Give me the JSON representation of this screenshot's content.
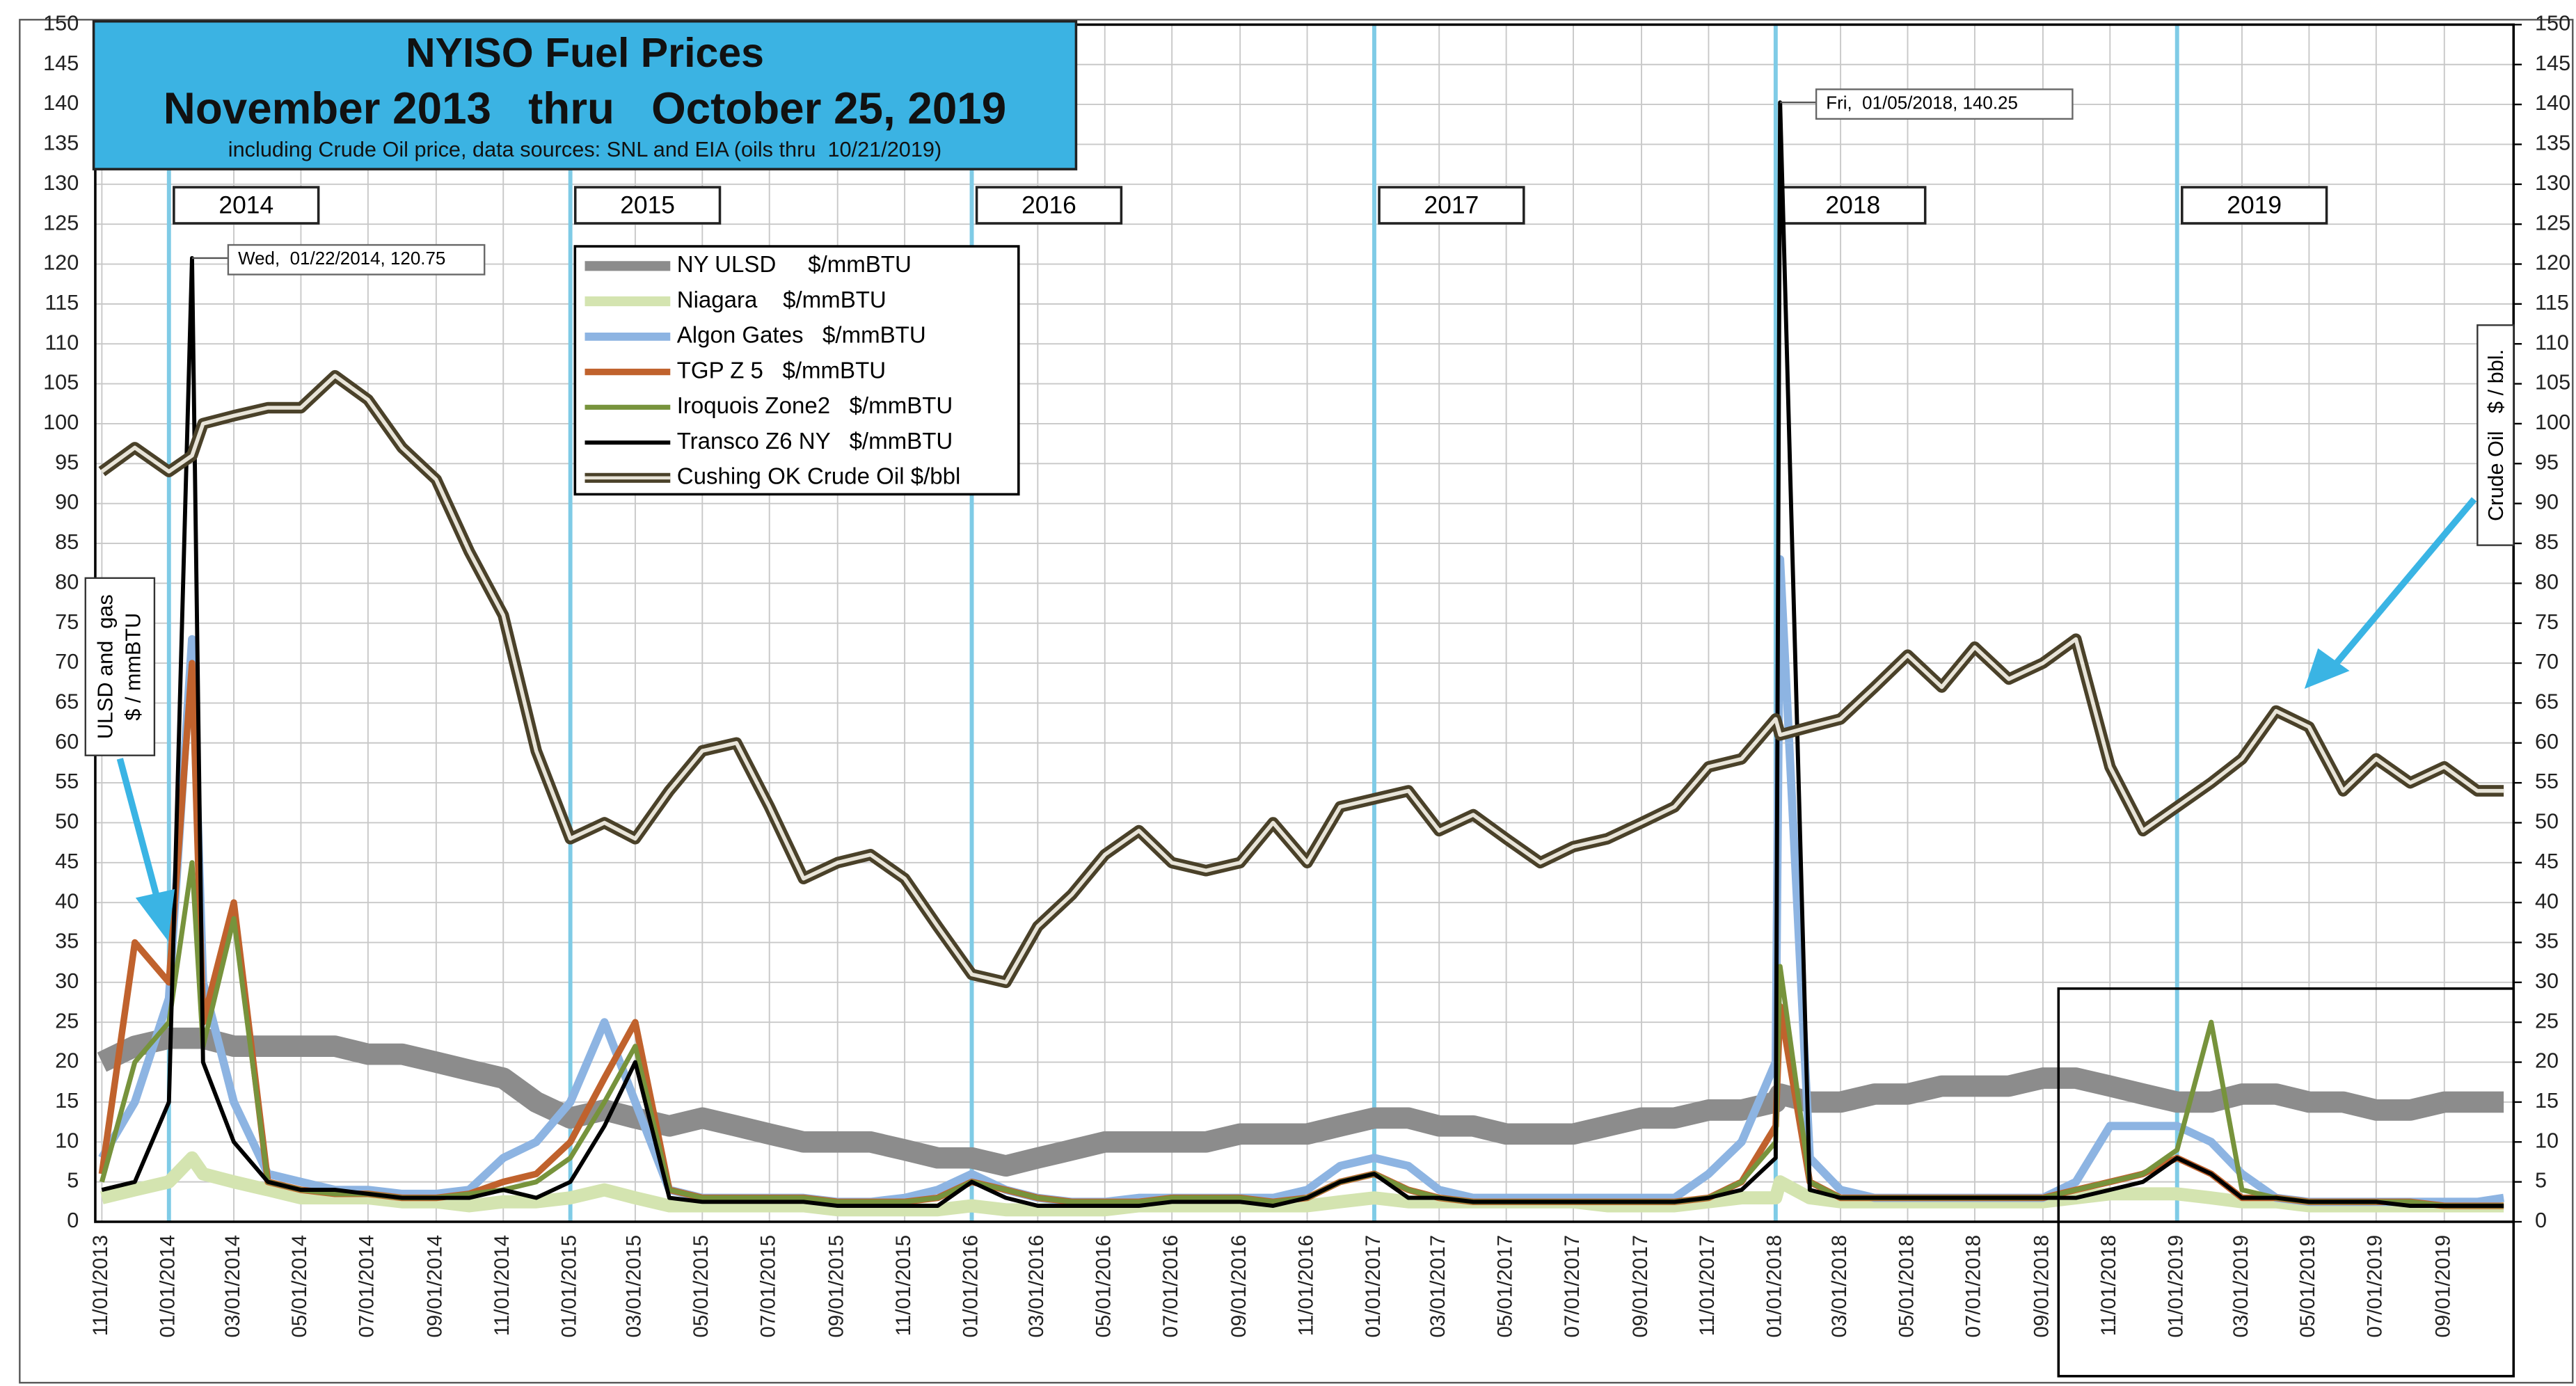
{
  "chart_data": {
    "type": "line",
    "title": "NYISO Fuel Prices",
    "subtitle": "November 2013   thru   October 25, 2019",
    "note": "including Crude Oil price, data sources: SNL and EIA (oils thru  10/21/2019)",
    "y_label": [
      "ULSD and  gas",
      "$ / mmBTU"
    ],
    "y2_label": [
      "Crude Oil   $ / bbl."
    ],
    "x": [
      "11/01/2013",
      "12/01/2013",
      "01/01/2014",
      "01/22/2014",
      "02/01/2014",
      "03/01/2014",
      "04/01/2014",
      "05/01/2014",
      "06/01/2014",
      "07/01/2014",
      "08/01/2014",
      "09/01/2014",
      "10/01/2014",
      "11/01/2014",
      "12/01/2014",
      "01/01/2015",
      "02/01/2015",
      "03/01/2015",
      "04/01/2015",
      "05/01/2015",
      "06/01/2015",
      "07/01/2015",
      "08/01/2015",
      "09/01/2015",
      "10/01/2015",
      "11/01/2015",
      "12/01/2015",
      "01/01/2016",
      "02/01/2016",
      "03/01/2016",
      "04/01/2016",
      "05/01/2016",
      "06/01/2016",
      "07/01/2016",
      "08/01/2016",
      "09/01/2016",
      "10/01/2016",
      "11/01/2016",
      "12/01/2016",
      "01/01/2017",
      "02/01/2017",
      "03/01/2017",
      "04/01/2017",
      "05/01/2017",
      "06/01/2017",
      "07/01/2017",
      "08/01/2017",
      "09/01/2017",
      "10/01/2017",
      "11/01/2017",
      "12/01/2017",
      "01/01/2018",
      "01/05/2018",
      "02/01/2018",
      "03/01/2018",
      "04/01/2018",
      "05/01/2018",
      "06/01/2018",
      "07/01/2018",
      "08/01/2018",
      "09/01/2018",
      "10/01/2018",
      "11/01/2018",
      "12/01/2018",
      "01/01/2019",
      "02/01/2019",
      "03/01/2019",
      "04/01/2019",
      "05/01/2019",
      "06/01/2019",
      "07/01/2019",
      "08/01/2019",
      "09/01/2019",
      "10/01/2019",
      "10/25/2019"
    ],
    "xlim": [
      "11/01/2013",
      "10/25/2019"
    ],
    "xticks": [
      "11/01/2013",
      "01/01/2014",
      "03/01/2014",
      "05/01/2014",
      "07/01/2014",
      "09/01/2014",
      "11/01/2014",
      "01/01/2015",
      "03/01/2015",
      "05/01/2015",
      "07/01/2015",
      "09/01/2015",
      "11/01/2015",
      "01/01/2016",
      "03/01/2016",
      "05/01/2016",
      "07/01/2016",
      "09/01/2016",
      "11/01/2016",
      "01/01/2017",
      "03/01/2017",
      "05/01/2017",
      "07/01/2017",
      "09/01/2017",
      "11/01/2017",
      "01/01/2018",
      "03/01/2018",
      "05/01/2018",
      "07/01/2018",
      "09/01/2018",
      "11/01/2018",
      "01/01/2019",
      "03/01/2019",
      "05/01/2019",
      "07/01/2019",
      "09/01/2019"
    ],
    "ylim": [
      0,
      150
    ],
    "yticks": [
      0,
      5,
      10,
      15,
      20,
      25,
      30,
      35,
      40,
      45,
      50,
      55,
      60,
      65,
      70,
      75,
      80,
      85,
      90,
      95,
      100,
      105,
      110,
      115,
      120,
      125,
      130,
      135,
      140,
      145,
      150
    ],
    "y2lim": [
      0,
      150
    ],
    "y2ticks": [
      0,
      5,
      10,
      15,
      20,
      25,
      30,
      35,
      40,
      45,
      50,
      55,
      60,
      65,
      70,
      75,
      80,
      85,
      90,
      95,
      100,
      105,
      110,
      115,
      120,
      125,
      130,
      135,
      140,
      145,
      150
    ],
    "grid": true,
    "series": [
      {
        "name": "NY ULSD     $/mmBTU",
        "color": "#8c8c8c",
        "width": 13,
        "values": [
          20,
          22,
          23,
          23,
          23,
          22,
          22,
          22,
          22,
          21,
          21,
          20,
          19,
          18,
          15,
          13,
          14,
          13,
          12,
          13,
          12,
          11,
          10,
          10,
          10,
          9,
          8,
          8,
          7,
          8,
          9,
          10,
          10,
          10,
          10,
          11,
          11,
          11,
          12,
          13,
          13,
          12,
          12,
          11,
          11,
          11,
          12,
          13,
          13,
          14,
          14,
          15,
          16,
          15,
          15,
          16,
          16,
          17,
          17,
          17,
          18,
          18,
          17,
          16,
          15,
          15,
          16,
          16,
          15,
          15,
          14,
          14,
          15,
          15,
          15
        ]
      },
      {
        "name": "Niagara    $/mmBTU",
        "color": "#d4e4b0",
        "width": 8,
        "values": [
          3,
          4,
          5,
          8,
          6,
          5,
          4,
          3,
          3,
          3,
          2.5,
          2.5,
          2,
          2.5,
          2.5,
          3,
          4,
          3,
          2,
          2,
          2,
          2,
          2,
          1.5,
          1.5,
          1.5,
          1.5,
          2,
          1.5,
          1.5,
          1.5,
          1.5,
          2,
          2,
          2,
          2,
          2,
          2,
          2.5,
          3,
          2.5,
          2.5,
          2.5,
          2.5,
          2.5,
          2.5,
          2,
          2,
          2,
          2.5,
          3,
          3,
          5,
          3,
          2.5,
          2.5,
          2.5,
          2.5,
          2.5,
          2.5,
          2.5,
          3,
          3.5,
          3.5,
          3.5,
          3,
          2.5,
          2.5,
          2,
          2,
          2,
          2,
          2,
          2,
          2
        ]
      },
      {
        "name": "Algon Gates   $/mmBTU",
        "color": "#8db4e2",
        "width": 5,
        "values": [
          8,
          15,
          28,
          73,
          30,
          15,
          6,
          5,
          4,
          4,
          3.5,
          3.5,
          4,
          8,
          10,
          15,
          25,
          15,
          4,
          3,
          3,
          3,
          3,
          2.5,
          2.5,
          3,
          4,
          6,
          4,
          3,
          2.5,
          2.5,
          3,
          3,
          3,
          3,
          3,
          4,
          7,
          8,
          7,
          4,
          3,
          3,
          3,
          3,
          3,
          3,
          3,
          6,
          10,
          20,
          83,
          8,
          4,
          3,
          3,
          3,
          3,
          3,
          3,
          5,
          12,
          12,
          12,
          10,
          6,
          3,
          2.5,
          2.5,
          2.5,
          2.5,
          2.5,
          2.5,
          3
        ]
      },
      {
        "name": "TGP Z 5   $/mmBTU",
        "color": "#c0622d",
        "width": 4,
        "values": [
          6,
          35,
          30,
          70,
          25,
          40,
          5,
          4,
          3.5,
          3.5,
          3,
          3,
          3.5,
          5,
          6,
          10,
          18,
          25,
          4,
          3,
          3,
          3,
          3,
          2.5,
          2.5,
          2.5,
          3,
          5,
          4,
          3,
          2.5,
          2.5,
          2.5,
          3,
          3,
          3,
          2.5,
          3,
          5,
          6,
          4,
          3,
          2.5,
          2.5,
          2.5,
          2.5,
          2.5,
          2.5,
          2.5,
          3,
          5,
          12,
          27,
          5,
          3,
          3,
          3,
          3,
          3,
          3,
          3,
          4,
          5,
          6,
          8,
          6,
          3,
          3,
          2.5,
          2.5,
          2.5,
          2.5,
          2,
          2,
          2
        ]
      },
      {
        "name": "Iroquois Zone2   $/mmBTU",
        "color": "#77933c",
        "width": 3,
        "values": [
          5,
          20,
          25,
          45,
          22,
          38,
          5,
          4,
          3.5,
          3.5,
          3,
          3,
          3.5,
          4,
          5,
          8,
          15,
          22,
          4,
          3,
          3,
          3,
          3,
          2.5,
          2.5,
          2.5,
          3,
          5,
          4,
          3,
          2.5,
          2.5,
          2.5,
          3,
          3,
          3,
          2.5,
          3,
          5,
          6,
          4,
          3,
          2.5,
          2.5,
          2.5,
          2.5,
          2.5,
          2.5,
          2.5,
          3,
          5,
          10,
          32,
          5,
          3,
          3,
          3,
          3,
          3,
          3,
          3,
          4,
          5,
          6,
          9,
          25,
          4,
          3,
          2.5,
          2.5,
          2.5,
          2.5,
          2,
          2,
          2
        ]
      },
      {
        "name": "Transco Z6 NY   $/mmBTU",
        "color": "#000000",
        "width": 2.5,
        "values": [
          4,
          5,
          15,
          120.75,
          20,
          10,
          5,
          4,
          4,
          3.5,
          3,
          3,
          3,
          4,
          3,
          5,
          12,
          20,
          3,
          2.5,
          2.5,
          2.5,
          2.5,
          2,
          2,
          2,
          2,
          5,
          3,
          2,
          2,
          2,
          2,
          2.5,
          2.5,
          2.5,
          2,
          3,
          5,
          6,
          3,
          3,
          2.5,
          2.5,
          2.5,
          2.5,
          2.5,
          2.5,
          2.5,
          3,
          4,
          8,
          140.25,
          4,
          3,
          3,
          3,
          3,
          3,
          3,
          3,
          3,
          4,
          5,
          8,
          6,
          3,
          3,
          2.5,
          2.5,
          2.5,
          2,
          2,
          2,
          2
        ]
      },
      {
        "name": "Cushing OK Crude Oil $/bbl",
        "color": "#4a4129",
        "inner": "#e8e4d8",
        "width": 7,
        "axis": "y2",
        "values": [
          94,
          97,
          94,
          96,
          100,
          101,
          102,
          102,
          106,
          103,
          97,
          93,
          84,
          76,
          59,
          48,
          50,
          48,
          54,
          59,
          60,
          52,
          43,
          45,
          46,
          43,
          37,
          31,
          30,
          37,
          41,
          46,
          49,
          45,
          44,
          45,
          50,
          45,
          52,
          53,
          54,
          49,
          51,
          48,
          45,
          47,
          48,
          50,
          52,
          57,
          58,
          63,
          61,
          62,
          63,
          67,
          71,
          67,
          72,
          68,
          70,
          73,
          57,
          49,
          52,
          55,
          58,
          64,
          62,
          54,
          58,
          55,
          57,
          54,
          54
        ]
      }
    ],
    "years": [
      {
        "label": "2014",
        "x": "01/01/2014"
      },
      {
        "label": "2015",
        "x": "01/01/2015"
      },
      {
        "label": "2016",
        "x": "01/01/2016"
      },
      {
        "label": "2017",
        "x": "01/01/2017"
      },
      {
        "label": "2018",
        "x": "01/01/2018"
      },
      {
        "label": "2019",
        "x": "01/01/2019"
      }
    ],
    "annotations": [
      {
        "text": "Wed,  01/22/2014, 120.75",
        "x": "01/22/2014",
        "y": 120.75
      },
      {
        "text": "Fri,  01/05/2018, 140.25",
        "x": "01/05/2018",
        "y": 140.25
      }
    ]
  }
}
